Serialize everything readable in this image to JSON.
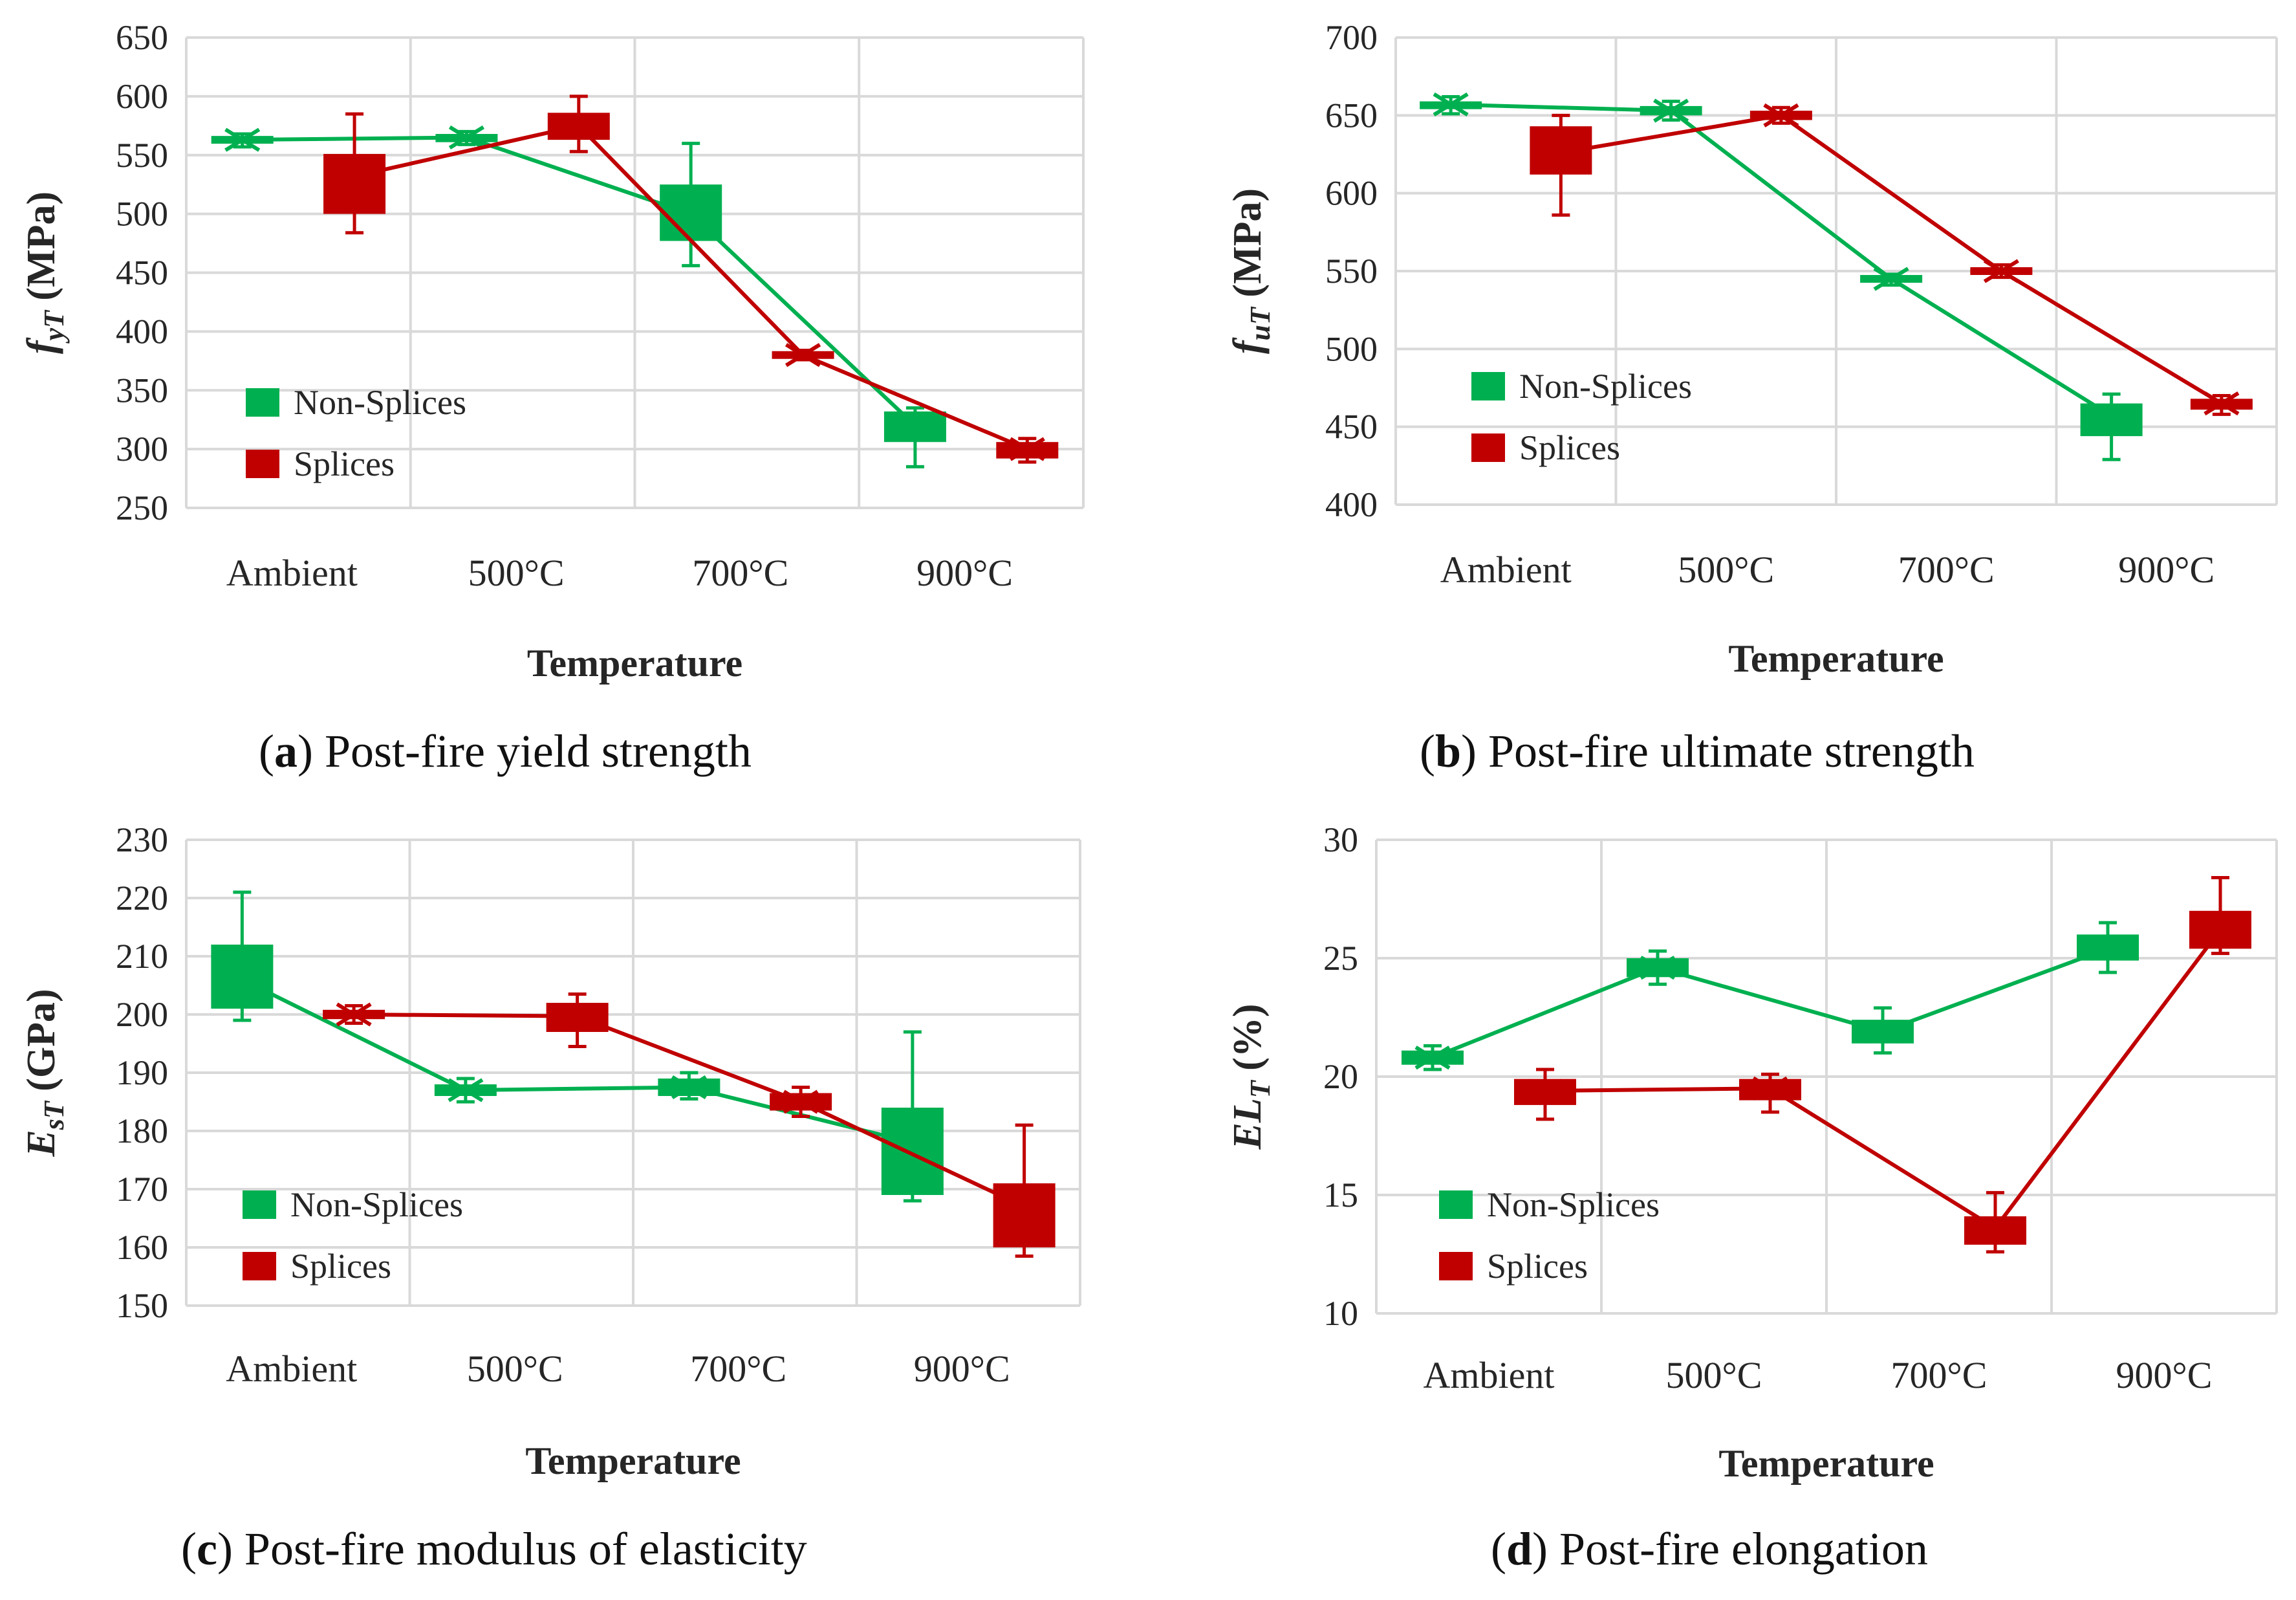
{
  "colors": {
    "non_splices": "#00b050",
    "splices": "#c00000",
    "grid": "#d9d9d9",
    "text": "#262626"
  },
  "legend": {
    "non_splices": "Non-Splices",
    "splices": "Splices"
  },
  "chart_data": [
    {
      "id": "a",
      "type": "line",
      "caption_letter": "a",
      "caption_text": ") Post-fire yield strength",
      "caption_open": "(",
      "ylabel_main": "f",
      "ylabel_sub": "yT",
      "ylabel_unit": " (MPa)",
      "xlabel": "Temperature",
      "categories": [
        "Ambient",
        "500°C",
        "700°C",
        "900°C"
      ],
      "ylim": [
        250,
        650
      ],
      "ytick_step": 50,
      "legend_position": "bottom-left",
      "series": [
        {
          "name": "Non-Splices",
          "key": "non_splices",
          "values": [
            563,
            565,
            500,
            320
          ],
          "box": [
            [
              560,
              566
            ],
            [
              561,
              568
            ],
            [
              477,
              525
            ],
            [
              306,
              332
            ]
          ],
          "whisker": [
            [
              557,
              568
            ],
            [
              559,
              570
            ],
            [
              456,
              560
            ],
            [
              285,
              335
            ]
          ]
        },
        {
          "name": "Splices",
          "key": "splices",
          "values": [
            532,
            575,
            380,
            300
          ],
          "box": [
            [
              500,
              551
            ],
            [
              563,
              586
            ],
            [
              378,
              382
            ],
            [
              292,
              306
            ]
          ],
          "whisker": [
            [
              484,
              585
            ],
            [
              553,
              600
            ],
            [
              376,
              384
            ],
            [
              289,
              309
            ]
          ]
        }
      ]
    },
    {
      "id": "b",
      "type": "line",
      "caption_letter": "b",
      "caption_text": ") Post-fire ultimate strength",
      "caption_open": "(",
      "ylabel_main": "f",
      "ylabel_sub": "uT",
      "ylabel_unit": " (MPa)",
      "xlabel": "Temperature",
      "categories": [
        "Ambient",
        "500°C",
        "700°C",
        "900°C"
      ],
      "ylim": [
        400,
        700
      ],
      "ytick_step": 50,
      "legend_position": "bottom-left",
      "series": [
        {
          "name": "Non-Splices",
          "key": "non_splices",
          "values": [
            657,
            653,
            545,
            457
          ],
          "box": [
            [
              654,
              659
            ],
            [
              650,
              656
            ],
            [
              543,
              547
            ],
            [
              444,
              465
            ]
          ],
          "whisker": [
            [
              651,
              662
            ],
            [
              647,
              659
            ],
            [
              541,
              548
            ],
            [
              429,
              471
            ]
          ]
        },
        {
          "name": "Splices",
          "key": "splices",
          "values": [
            626,
            650,
            550,
            465
          ],
          "box": [
            [
              612,
              643
            ],
            [
              647,
              653
            ],
            [
              548,
              552
            ],
            [
              461,
              468
            ]
          ],
          "whisker": [
            [
              586,
              650
            ],
            [
              645,
              655
            ],
            [
              546,
              554
            ],
            [
              458,
              470
            ]
          ]
        }
      ]
    },
    {
      "id": "c",
      "type": "line",
      "caption_letter": "c",
      "caption_text": ") Post-fire modulus of elasticity",
      "caption_open": "(",
      "ylabel_main": "E",
      "ylabel_sub": "sT",
      "ylabel_unit": " (GPa)",
      "xlabel": "Temperature",
      "categories": [
        "Ambient",
        "500°C",
        "700°C",
        "900°C"
      ],
      "ylim": [
        150,
        230
      ],
      "ytick_step": 10,
      "legend_position": "bottom-left",
      "series": [
        {
          "name": "Non-Splices",
          "key": "non_splices",
          "values": [
            206,
            187,
            187.5,
            178
          ],
          "box": [
            [
              201,
              212
            ],
            [
              186,
              188
            ],
            [
              186,
              189
            ],
            [
              169,
              184
            ]
          ],
          "whisker": [
            [
              199,
              221
            ],
            [
              185,
              189
            ],
            [
              185.5,
              190
            ],
            [
              168,
              197
            ]
          ]
        },
        {
          "name": "Splices",
          "key": "splices",
          "values": [
            200,
            199.7,
            185,
            167
          ],
          "box": [
            [
              199.2,
              200.8
            ],
            [
              197,
              202
            ],
            [
              183.5,
              186.5
            ],
            [
              160,
              171
            ]
          ],
          "whisker": [
            [
              198.5,
              201.5
            ],
            [
              194.5,
              203.5
            ],
            [
              182.5,
              187.5
            ],
            [
              158.5,
              181
            ]
          ]
        }
      ]
    },
    {
      "id": "d",
      "type": "line",
      "caption_letter": "d",
      "caption_text": ") Post-fire elongation",
      "caption_open": "(",
      "ylabel_main": "EL",
      "ylabel_sub": "T",
      "ylabel_unit": " (%)",
      "xlabel": "Temperature",
      "categories": [
        "Ambient",
        "500°C",
        "700°C",
        "900°C"
      ],
      "ylim": [
        10,
        30
      ],
      "ytick_step": 5,
      "legend_position": "bottom-left",
      "series": [
        {
          "name": "Non-Splices",
          "key": "non_splices",
          "values": [
            20.8,
            24.6,
            21.9,
            25.4
          ],
          "box": [
            [
              20.5,
              21.1
            ],
            [
              24.2,
              25.0
            ],
            [
              21.4,
              22.4
            ],
            [
              24.9,
              26.0
            ]
          ],
          "whisker": [
            [
              20.3,
              21.3
            ],
            [
              23.9,
              25.3
            ],
            [
              21.0,
              22.9
            ],
            [
              24.4,
              26.5
            ]
          ]
        },
        {
          "name": "Splices",
          "key": "splices",
          "values": [
            19.4,
            19.5,
            13.6,
            26.2
          ],
          "box": [
            [
              18.8,
              19.9
            ],
            [
              19.0,
              19.9
            ],
            [
              12.9,
              14.1
            ],
            [
              25.4,
              27.0
            ]
          ],
          "whisker": [
            [
              18.2,
              20.3
            ],
            [
              18.5,
              20.1
            ],
            [
              12.6,
              15.1
            ],
            [
              25.2,
              28.4
            ]
          ]
        }
      ]
    }
  ]
}
